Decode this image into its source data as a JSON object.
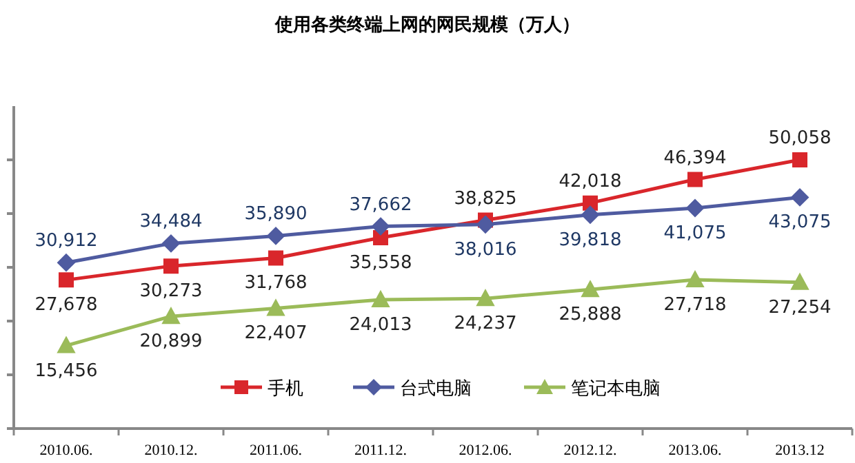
{
  "chart_data": {
    "type": "line",
    "title": "使用各类终端上网的网民规模（万人）",
    "categories": [
      "2010.06.",
      "2010.12.",
      "2011.06.",
      "2011.12.",
      "2012.06.",
      "2012.12.",
      "2013.06.",
      "2013.12"
    ],
    "series": [
      {
        "name": "手机",
        "color": "#d9262b",
        "marker": "square",
        "values": [
          27678,
          30273,
          31768,
          35558,
          38825,
          42018,
          46394,
          50058
        ],
        "value_labels": [
          "27,678",
          "30,273",
          "31,768",
          "35,558",
          "38,825",
          "42,018",
          "46,394",
          "50,058"
        ]
      },
      {
        "name": "台式电脑",
        "color": "#4f5ba0",
        "marker": "diamond",
        "values": [
          30912,
          34484,
          35890,
          37662,
          38016,
          39818,
          41075,
          43075
        ],
        "value_labels": [
          "30,912",
          "34,484",
          "35,890",
          "37,662",
          "38,016",
          "39,818",
          "41,075",
          "43,075"
        ]
      },
      {
        "name": "笔记本电脑",
        "color": "#9bbb59",
        "marker": "triangle",
        "values": [
          15456,
          20899,
          22407,
          24013,
          24237,
          25888,
          27718,
          27254
        ],
        "value_labels": [
          "15,456",
          "20,899",
          "22,407",
          "24,013",
          "24,237",
          "25,888",
          "27,718",
          "27,254"
        ]
      }
    ],
    "tick_labels": "x",
    "grid": false,
    "legend": "bottom"
  }
}
